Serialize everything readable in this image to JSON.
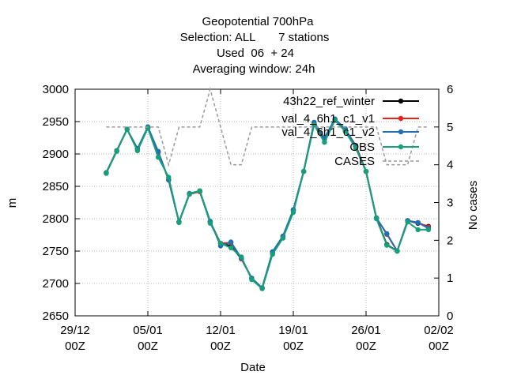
{
  "title_lines": [
    "Geopotential 700hPa",
    "Selection: ALL       7 stations",
    "Used  06  + 24",
    "Averaging window: 24h"
  ],
  "chart_data": {
    "type": "line",
    "xlabel": "Date",
    "ylabel": "m",
    "y2label": "No cases",
    "x_ticks": [
      {
        "x": "2012-12-29T00:00",
        "line1": "29/12",
        "line2": "00Z"
      },
      {
        "x": "2013-01-05T00:00",
        "line1": "05/01",
        "line2": "00Z"
      },
      {
        "x": "2013-01-12T00:00",
        "line1": "12/01",
        "line2": "00Z"
      },
      {
        "x": "2013-01-19T00:00",
        "line1": "19/01",
        "line2": "00Z"
      },
      {
        "x": "2013-01-26T00:00",
        "line1": "26/01",
        "line2": "00Z"
      },
      {
        "x": "2013-02-02T00:00",
        "line1": "02/02",
        "line2": "00Z"
      }
    ],
    "xlim": [
      "2012-12-29T00:00",
      "2013-02-02T00:00"
    ],
    "ylim": [
      2650,
      3000
    ],
    "y_ticks": [
      2650,
      2700,
      2750,
      2800,
      2850,
      2900,
      2950,
      3000
    ],
    "y2lim": [
      0,
      6
    ],
    "y2_ticks": [
      0,
      1,
      2,
      3,
      4,
      5,
      6
    ],
    "grid": true,
    "legend": "top-right",
    "x": [
      "2013-01-01T00:00",
      "2013-01-02T00:00",
      "2013-01-03T00:00",
      "2013-01-04T00:00",
      "2013-01-05T00:00",
      "2013-01-06T00:00",
      "2013-01-07T00:00",
      "2013-01-08T00:00",
      "2013-01-09T00:00",
      "2013-01-10T00:00",
      "2013-01-11T00:00",
      "2013-01-12T00:00",
      "2013-01-13T00:00",
      "2013-01-14T00:00",
      "2013-01-15T00:00",
      "2013-01-16T00:00",
      "2013-01-17T00:00",
      "2013-01-18T00:00",
      "2013-01-19T00:00",
      "2013-01-20T00:00",
      "2013-01-21T00:00",
      "2013-01-22T00:00",
      "2013-01-23T00:00",
      "2013-01-24T00:00",
      "2013-01-25T00:00",
      "2013-01-26T00:00",
      "2013-01-27T00:00",
      "2013-01-28T00:00",
      "2013-01-29T00:00",
      "2013-01-30T00:00",
      "2013-01-31T00:00",
      "2013-02-01T00:00"
    ],
    "series": [
      {
        "name": "43h22_ref_winter",
        "color": "#000000",
        "axis": "y1",
        "marker": "dot",
        "values": [
          2871,
          2905,
          2938,
          2908,
          2940,
          2903,
          2860,
          2795,
          2838,
          2842,
          2795,
          2762,
          2758,
          2738,
          2708,
          2693,
          2748,
          2773,
          2813,
          2873,
          2948,
          2923,
          2953,
          2938,
          2913,
          2873,
          2801,
          2760,
          2750,
          2797,
          2793,
          2788
        ]
      },
      {
        "name": "val_4_6h1_c1_v1",
        "color": "#e8221a",
        "axis": "y1",
        "marker": "dot",
        "values": [
          2871,
          2905,
          2938,
          2908,
          2941,
          2903,
          2860,
          2795,
          2838,
          2842,
          2795,
          2762,
          2763,
          2738,
          2708,
          2693,
          2748,
          2773,
          2813,
          2873,
          2948,
          2924,
          2953,
          2938,
          2912,
          2873,
          2801,
          2776,
          2750,
          2797,
          2794,
          2787
        ]
      },
      {
        "name": "val_4_6h1_c1_v2",
        "color": "#1f6fb4",
        "axis": "y1",
        "marker": "dot",
        "values": [
          2871,
          2905,
          2938,
          2908,
          2942,
          2904,
          2860,
          2795,
          2839,
          2843,
          2796,
          2758,
          2764,
          2739,
          2708,
          2693,
          2749,
          2773,
          2814,
          2873,
          2949,
          2925,
          2954,
          2939,
          2911,
          2873,
          2801,
          2777,
          2750,
          2797,
          2794,
          2785
        ]
      },
      {
        "name": "OBS",
        "color": "#16a07a",
        "axis": "y1",
        "marker": "dot",
        "values": [
          2870,
          2904,
          2938,
          2905,
          2940,
          2895,
          2864,
          2794,
          2838,
          2843,
          2793,
          2762,
          2755,
          2741,
          2706,
          2692,
          2745,
          2770,
          2810,
          2873,
          2945,
          2918,
          2952,
          2935,
          2909,
          2873,
          2800,
          2759,
          2750,
          2795,
          2783,
          2783
        ]
      },
      {
        "name": "CASES",
        "color": "#999999",
        "axis": "y2",
        "marker": "none",
        "dashed": true,
        "x": [
          "2013-01-01T00:00",
          "2013-01-02T00:00",
          "2013-01-03T00:00",
          "2013-01-04T00:00",
          "2013-01-05T00:00",
          "2013-01-06T00:00",
          "2013-01-07T00:00",
          "2013-01-08T00:00",
          "2013-01-09T00:00",
          "2013-01-10T00:00",
          "2013-01-11T00:00",
          "2013-01-12T00:00",
          "2013-01-13T00:00",
          "2013-01-14T00:00",
          "2013-01-15T00:00",
          "2013-01-16T00:00",
          "2013-01-17T00:00",
          "2013-01-18T00:00",
          "2013-01-19T00:00",
          "2013-01-20T00:00",
          "2013-01-21T00:00",
          "2013-01-22T00:00",
          "2013-01-23T00:00",
          "2013-01-24T00:00",
          "2013-01-25T00:00",
          "2013-01-26T00:00",
          "2013-01-27T00:00",
          "2013-01-28T00:00",
          "2013-01-29T00:00",
          "2013-01-30T00:00",
          "2013-01-31T00:00",
          "2013-02-01T00:00"
        ],
        "values": [
          5,
          5,
          5,
          5,
          5,
          5,
          4,
          5,
          5,
          5,
          6,
          5,
          4,
          4,
          5,
          5,
          5,
          5,
          5,
          5,
          5,
          5,
          5,
          5,
          5,
          5,
          5,
          4,
          4,
          4,
          5,
          5
        ]
      }
    ]
  }
}
